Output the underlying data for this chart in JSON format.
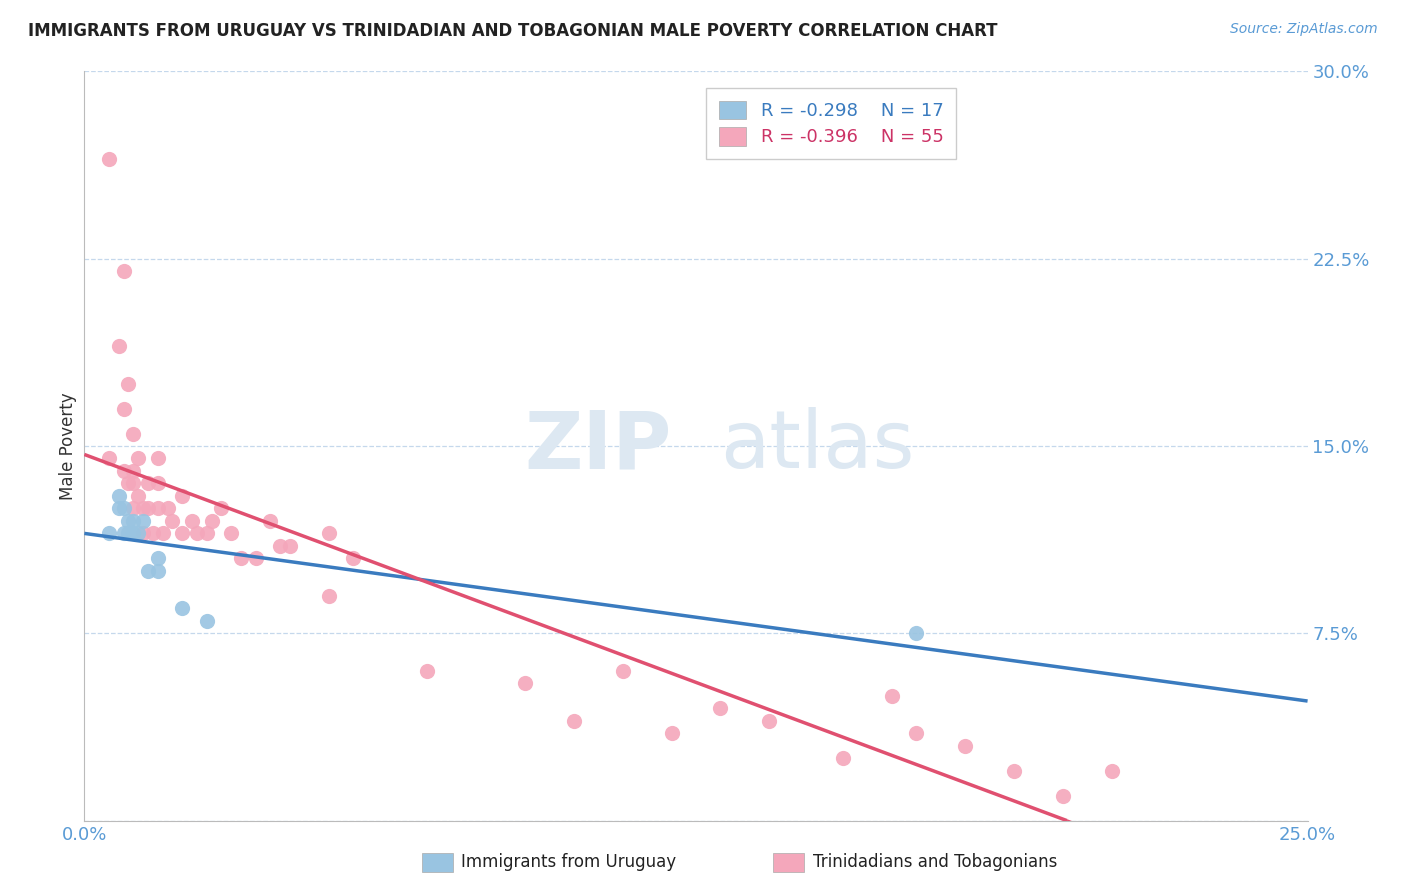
{
  "title": "IMMIGRANTS FROM URUGUAY VS TRINIDADIAN AND TOBAGONIAN MALE POVERTY CORRELATION CHART",
  "source_text": "Source: ZipAtlas.com",
  "ylabel": "Male Poverty",
  "xlim": [
    0.0,
    0.25
  ],
  "ylim": [
    0.0,
    0.3
  ],
  "color_uruguay": "#99c4e1",
  "color_trinidad": "#f4a7bb",
  "line_color_uruguay": "#3a7bbf",
  "line_color_trinidad": "#e05070",
  "watermark_zip": "ZIP",
  "watermark_atlas": "atlas",
  "legend_r_uruguay": "R = -0.298",
  "legend_n_uruguay": "N = 17",
  "legend_r_trinidad": "R = -0.396",
  "legend_n_trinidad": "N = 55",
  "legend_label_uruguay": "Immigrants from Uruguay",
  "legend_label_trinidad": "Trinidadians and Tobagonians",
  "uruguay_x": [
    0.005,
    0.007,
    0.007,
    0.008,
    0.008,
    0.009,
    0.009,
    0.01,
    0.01,
    0.011,
    0.012,
    0.013,
    0.015,
    0.015,
    0.02,
    0.025,
    0.17
  ],
  "uruguay_y": [
    0.115,
    0.125,
    0.13,
    0.115,
    0.125,
    0.115,
    0.12,
    0.115,
    0.12,
    0.115,
    0.12,
    0.1,
    0.1,
    0.105,
    0.085,
    0.08,
    0.075
  ],
  "trinidad_x": [
    0.005,
    0.005,
    0.007,
    0.008,
    0.008,
    0.008,
    0.009,
    0.009,
    0.01,
    0.01,
    0.01,
    0.01,
    0.011,
    0.011,
    0.012,
    0.012,
    0.013,
    0.013,
    0.014,
    0.015,
    0.015,
    0.015,
    0.016,
    0.017,
    0.018,
    0.02,
    0.02,
    0.022,
    0.023,
    0.025,
    0.026,
    0.028,
    0.03,
    0.032,
    0.035,
    0.038,
    0.04,
    0.042,
    0.05,
    0.05,
    0.055,
    0.07,
    0.09,
    0.1,
    0.11,
    0.12,
    0.13,
    0.14,
    0.155,
    0.165,
    0.17,
    0.18,
    0.19,
    0.2,
    0.21
  ],
  "trinidad_y": [
    0.145,
    0.265,
    0.19,
    0.14,
    0.165,
    0.22,
    0.135,
    0.175,
    0.125,
    0.135,
    0.14,
    0.155,
    0.13,
    0.145,
    0.115,
    0.125,
    0.125,
    0.135,
    0.115,
    0.125,
    0.135,
    0.145,
    0.115,
    0.125,
    0.12,
    0.115,
    0.13,
    0.12,
    0.115,
    0.115,
    0.12,
    0.125,
    0.115,
    0.105,
    0.105,
    0.12,
    0.11,
    0.11,
    0.09,
    0.115,
    0.105,
    0.06,
    0.055,
    0.04,
    0.06,
    0.035,
    0.045,
    0.04,
    0.025,
    0.05,
    0.035,
    0.03,
    0.02,
    0.01,
    0.02
  ]
}
